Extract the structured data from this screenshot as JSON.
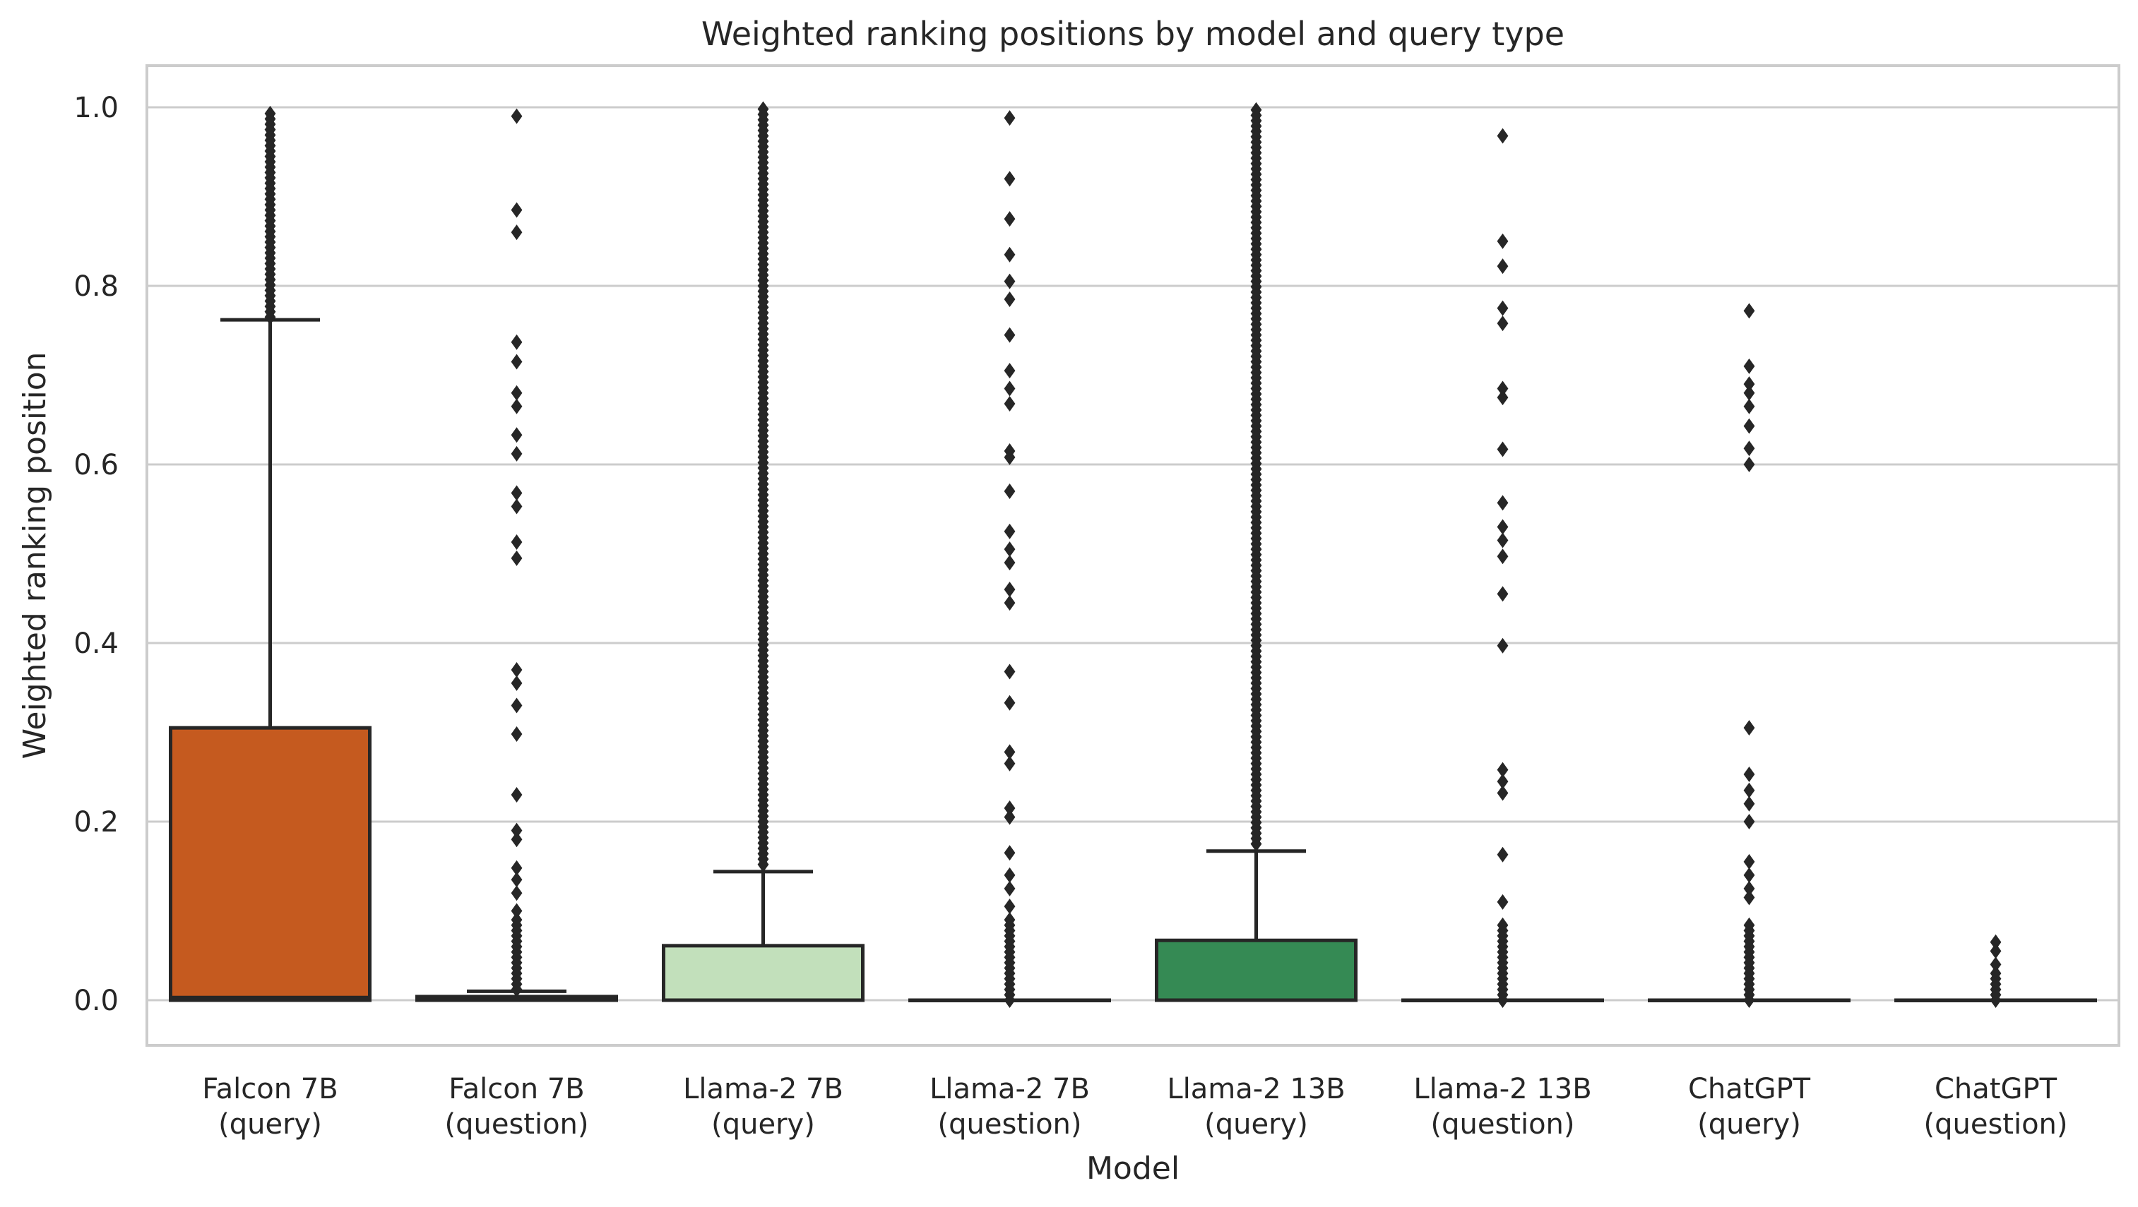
{
  "chart_data": {
    "type": "box",
    "title": "Weighted ranking positions by model and query type",
    "xlabel": "Model",
    "ylabel": "Weighted ranking position",
    "ylim": [
      -0.05,
      1.05
    ],
    "yticks": [
      0.0,
      0.2,
      0.4,
      0.6,
      0.8,
      1.0
    ],
    "ytick_labels": [
      "0.0",
      "0.2",
      "0.4",
      "0.6",
      "0.8",
      "1.0"
    ],
    "grid": "horizontal",
    "categories": [
      {
        "line1": "Falcon 7B",
        "line2": "(query)"
      },
      {
        "line1": "Falcon 7B",
        "line2": "(question)"
      },
      {
        "line1": "Llama-2 7B",
        "line2": "(query)"
      },
      {
        "line1": "Llama-2 7B",
        "line2": "(question)"
      },
      {
        "line1": "Llama-2 13B",
        "line2": "(query)"
      },
      {
        "line1": "Llama-2 13B",
        "line2": "(question)"
      },
      {
        "line1": "ChatGPT",
        "line2": "(query)"
      },
      {
        "line1": "ChatGPT",
        "line2": "(question)"
      }
    ],
    "boxes": [
      {
        "color": "#c55a1f",
        "whislo": 0.0,
        "q1": 0.0,
        "median": 0.003,
        "q3": 0.305,
        "whishi": 0.762,
        "fliers_dense": [
          [
            0.765,
            0.998
          ]
        ],
        "fliers": []
      },
      {
        "color": "#c55a1f",
        "whislo": 0.0,
        "q1": 0.0,
        "median": 0.001,
        "q3": 0.004,
        "whishi": 0.01,
        "fliers_dense": [
          [
            0.012,
            0.085
          ]
        ],
        "fliers": [
          0.99,
          0.885,
          0.86,
          0.737,
          0.715,
          0.68,
          0.665,
          0.633,
          0.612,
          0.568,
          0.553,
          0.513,
          0.495,
          0.37,
          0.355,
          0.33,
          0.298,
          0.23,
          0.19,
          0.18,
          0.148,
          0.135,
          0.12,
          0.1,
          0.09
        ]
      },
      {
        "color": "#c2e0bb",
        "whislo": 0.0,
        "q1": 0.0,
        "median": 0.0,
        "q3": 0.061,
        "whishi": 0.144,
        "fliers_dense": [
          [
            0.152,
            0.998
          ]
        ],
        "fliers": []
      },
      {
        "color": "#c2e0bb",
        "whislo": 0.0,
        "q1": 0.0,
        "median": 0.0,
        "q3": 0.0,
        "whishi": 0.0,
        "fliers_dense": [
          [
            0.0,
            0.09
          ]
        ],
        "fliers": [
          0.988,
          0.92,
          0.875,
          0.835,
          0.805,
          0.785,
          0.745,
          0.705,
          0.685,
          0.668,
          0.615,
          0.608,
          0.57,
          0.525,
          0.505,
          0.49,
          0.46,
          0.445,
          0.368,
          0.333,
          0.278,
          0.265,
          0.215,
          0.205,
          0.165,
          0.14,
          0.125,
          0.105
        ]
      },
      {
        "color": "#358a54",
        "whislo": 0.0,
        "q1": 0.0,
        "median": 0.0,
        "q3": 0.067,
        "whishi": 0.167,
        "fliers_dense": [
          [
            0.175,
            0.998
          ]
        ],
        "fliers": []
      },
      {
        "color": "#358a54",
        "whislo": 0.0,
        "q1": 0.0,
        "median": 0.0,
        "q3": 0.0,
        "whishi": 0.0,
        "fliers_dense": [
          [
            0.0,
            0.085
          ]
        ],
        "fliers": [
          0.968,
          0.85,
          0.822,
          0.775,
          0.758,
          0.685,
          0.675,
          0.617,
          0.557,
          0.53,
          0.515,
          0.497,
          0.455,
          0.397,
          0.258,
          0.245,
          0.232,
          0.163,
          0.11
        ]
      },
      {
        "color": "#262626",
        "whislo": 0.0,
        "q1": 0.0,
        "median": 0.0,
        "q3": 0.0,
        "whishi": 0.0,
        "fliers_dense": [
          [
            0.0,
            0.085
          ]
        ],
        "fliers": [
          0.772,
          0.71,
          0.69,
          0.68,
          0.665,
          0.643,
          0.618,
          0.6,
          0.305,
          0.253,
          0.235,
          0.22,
          0.2,
          0.155,
          0.14,
          0.125,
          0.115
        ]
      },
      {
        "color": "#262626",
        "whislo": 0.0,
        "q1": 0.0,
        "median": 0.0,
        "q3": 0.0,
        "whishi": 0.0,
        "fliers_dense": [
          [
            0.0,
            0.035
          ]
        ],
        "fliers": [
          0.065,
          0.055,
          0.04
        ]
      }
    ]
  }
}
